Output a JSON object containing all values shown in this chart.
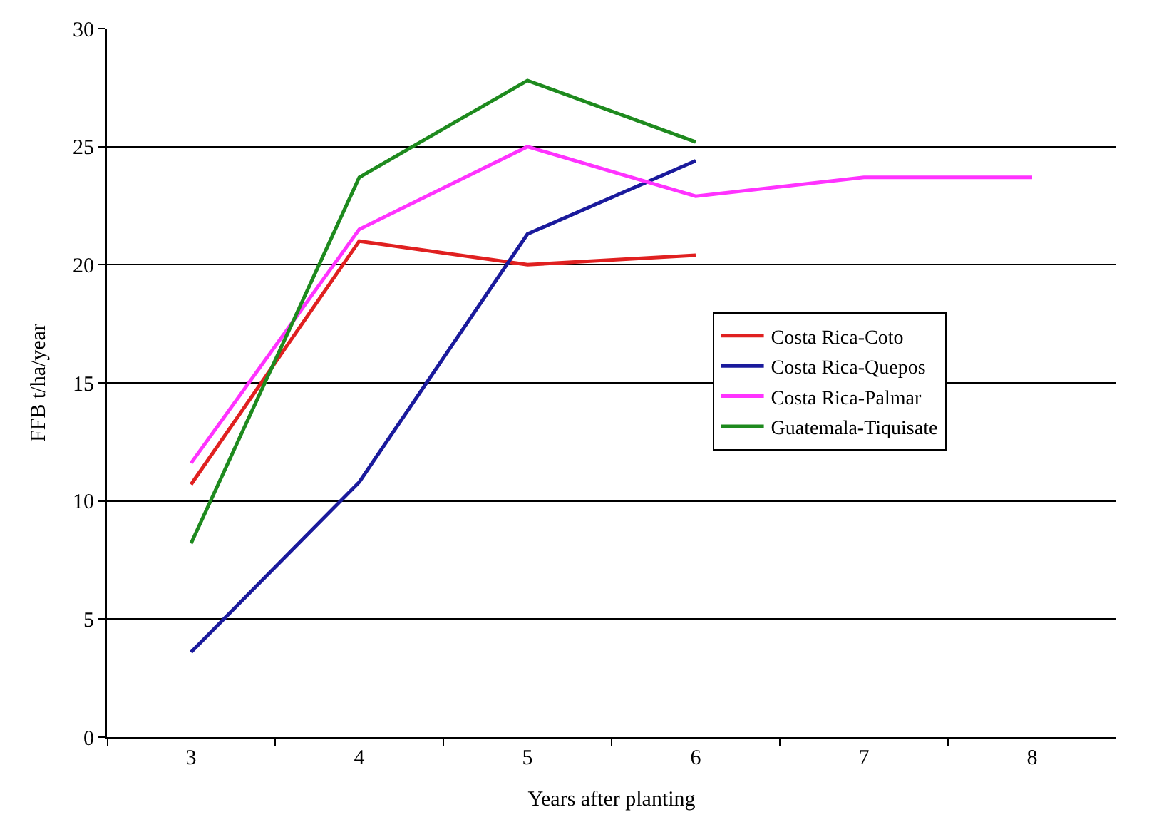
{
  "chart_data": {
    "type": "line",
    "xlabel": "Years after planting",
    "ylabel": "FFB t/ha/year",
    "categories": [
      "3",
      "4",
      "5",
      "6",
      "7",
      "8"
    ],
    "series": [
      {
        "name": "Costa Rica-Coto",
        "color": "#e02020",
        "values": [
          10.7,
          21.0,
          20.0,
          20.4,
          null,
          null
        ]
      },
      {
        "name": "Costa Rica-Quepos",
        "color": "#1a1a9c",
        "values": [
          3.6,
          10.8,
          21.3,
          24.4,
          null,
          null
        ]
      },
      {
        "name": "Costa Rica-Palmar",
        "color": "#ff33ff",
        "values": [
          11.6,
          21.5,
          25.0,
          22.9,
          23.7,
          23.7
        ]
      },
      {
        "name": "Guatemala-Tiquisate",
        "color": "#1e8a1e",
        "values": [
          8.2,
          23.7,
          27.8,
          25.2,
          null,
          null
        ]
      }
    ],
    "ylim": [
      0,
      30
    ],
    "yticks": [
      0,
      5,
      10,
      15,
      20,
      25,
      30
    ],
    "grid": "y",
    "legend": "right",
    "marker": "none",
    "line_style": "solid"
  }
}
